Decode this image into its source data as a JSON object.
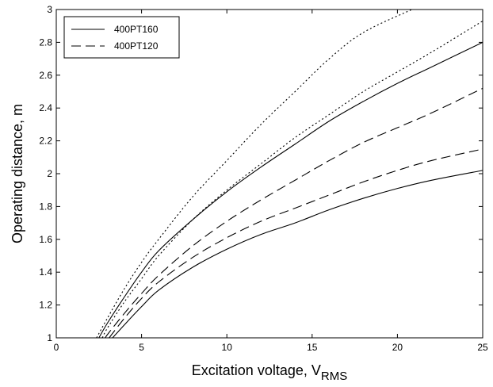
{
  "chart_data": {
    "type": "line",
    "xlabel": "Excitation voltage, V",
    "xlabel_sub": "RMS",
    "ylabel": "Operating distance, m",
    "xlim": [
      0,
      25
    ],
    "ylim": [
      1,
      3
    ],
    "xticks": [
      0,
      5,
      10,
      15,
      20,
      25
    ],
    "yticks": [
      1,
      1.2,
      1.4,
      1.6,
      1.8,
      2,
      2.2,
      2.4,
      2.6,
      2.8,
      3
    ],
    "xtick_labels": [
      "0",
      "5",
      "10",
      "15",
      "20",
      "25"
    ],
    "ytick_labels": [
      "1",
      "1.2",
      "1.4",
      "1.6",
      "1.8",
      "2",
      "2.2",
      "2.4",
      "2.6",
      "2.8",
      "3"
    ],
    "grid": false,
    "legend_position": "top-left",
    "legend": [
      {
        "label": "400PT160",
        "style": "solid"
      },
      {
        "label": "400PT120",
        "style": "dashed"
      }
    ],
    "series": [
      {
        "style": "dotted",
        "color": "#000000",
        "x": [
          2.36,
          3,
          4,
          5,
          6,
          8,
          10,
          12,
          14,
          16,
          18,
          20.85
        ],
        "y": [
          1.0,
          1.12,
          1.3,
          1.46,
          1.6,
          1.86,
          2.08,
          2.3,
          2.5,
          2.7,
          2.86,
          3.0
        ]
      },
      {
        "style": "dotted",
        "color": "#000000",
        "x": [
          2.7,
          3,
          4,
          5,
          6,
          8,
          10,
          12,
          14,
          16,
          18,
          20,
          22,
          25
        ],
        "y": [
          1.0,
          1.06,
          1.22,
          1.36,
          1.5,
          1.72,
          1.9,
          2.06,
          2.22,
          2.36,
          2.5,
          2.62,
          2.74,
          2.93
        ]
      },
      {
        "style": "solid",
        "color": "#000000",
        "x": [
          2.5,
          3,
          4,
          5,
          6,
          8,
          10,
          12,
          14,
          16,
          18,
          20,
          22,
          25
        ],
        "y": [
          1.0,
          1.09,
          1.25,
          1.4,
          1.53,
          1.72,
          1.89,
          2.04,
          2.18,
          2.32,
          2.44,
          2.55,
          2.65,
          2.8
        ]
      },
      {
        "style": "dashed",
        "color": "#000000",
        "x": [
          2.9,
          3,
          4,
          5,
          6,
          8,
          10,
          12,
          14,
          16,
          18,
          20,
          22,
          25
        ],
        "y": [
          1.0,
          1.02,
          1.15,
          1.27,
          1.38,
          1.56,
          1.71,
          1.84,
          1.96,
          2.08,
          2.19,
          2.28,
          2.37,
          2.52
        ]
      },
      {
        "style": "dashed",
        "color": "#000000",
        "x": [
          3.1,
          4,
          5,
          6,
          8,
          10,
          12,
          14,
          16,
          18,
          20,
          22,
          25
        ],
        "y": [
          1.0,
          1.12,
          1.24,
          1.34,
          1.49,
          1.61,
          1.71,
          1.79,
          1.87,
          1.95,
          2.02,
          2.08,
          2.15
        ]
      },
      {
        "style": "solid",
        "color": "#000000",
        "x": [
          3.3,
          4,
          5,
          6,
          8,
          10,
          12,
          14,
          16,
          18,
          20,
          22,
          25
        ],
        "y": [
          1.0,
          1.08,
          1.19,
          1.29,
          1.43,
          1.54,
          1.63,
          1.7,
          1.78,
          1.85,
          1.91,
          1.96,
          2.02
        ]
      }
    ]
  }
}
